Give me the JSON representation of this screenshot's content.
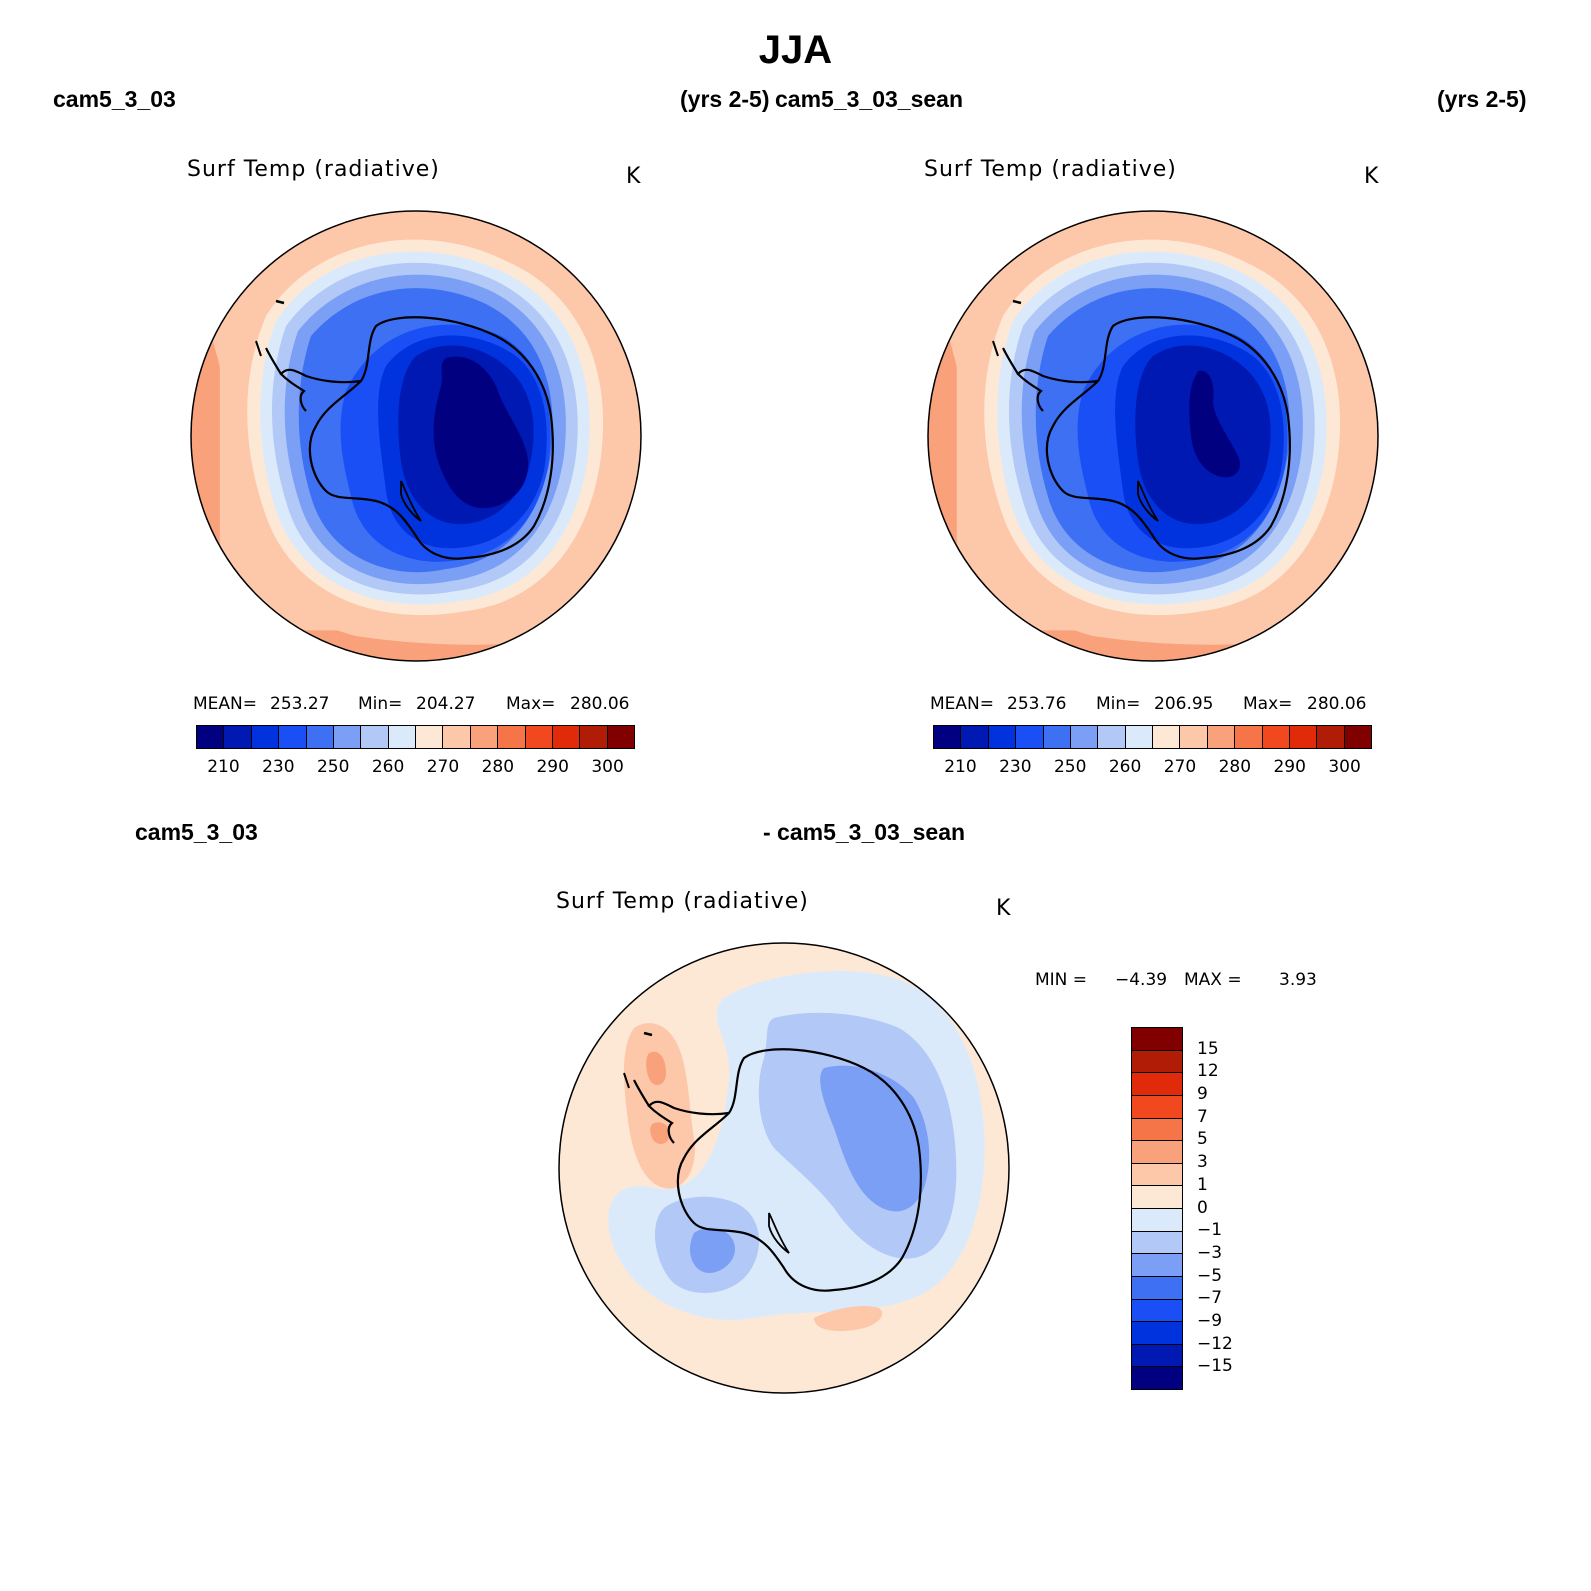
{
  "title": "JJA",
  "top_left": {
    "case_name": "cam5_3_03",
    "years": "(yrs 2-5)",
    "plot_title": "Surf Temp (radiative)",
    "unit": "K",
    "mean_label": "MEAN=",
    "mean": "253.27",
    "min_label": "Min=",
    "min": "204.27",
    "max_label": "Max=",
    "max": "280.06"
  },
  "top_right": {
    "case_name": "cam5_3_03_sean",
    "years": "(yrs 2-5)",
    "plot_title": "Surf Temp (radiative)",
    "unit": "K",
    "mean_label": "MEAN=",
    "mean": "253.76",
    "min_label": "Min=",
    "min": "206.95",
    "max_label": "Max=",
    "max": "280.06"
  },
  "bottom": {
    "case_name": "cam5_3_03",
    "diff_label": "- cam5_3_03_sean",
    "plot_title": "Surf Temp (radiative)",
    "unit": "K",
    "min_label": "MIN =",
    "min": "−4.39",
    "max_label": "MAX =",
    "max": "3.93"
  },
  "abs_colorbar": {
    "colors": [
      "#000080",
      "#0019b3",
      "#0033dd",
      "#1a4ff5",
      "#3d70f2",
      "#7a9ff5",
      "#b2c9f8",
      "#dbeafb",
      "#fde8d6",
      "#fdc8aa",
      "#f9a17b",
      "#f57548",
      "#f2481f",
      "#e02a09",
      "#b01c06",
      "#800000"
    ],
    "tick_labels": [
      "210",
      "230",
      "250",
      "260",
      "270",
      "280",
      "290",
      "300"
    ]
  },
  "diff_colorbar": {
    "colors": [
      "#800000",
      "#b01c06",
      "#e02a09",
      "#f2481f",
      "#f57548",
      "#f9a17b",
      "#fdc8aa",
      "#fde8d6",
      "#dbeafb",
      "#b2c9f8",
      "#7a9ff5",
      "#3d70f2",
      "#1a4ff5",
      "#0033dd",
      "#0019b3",
      "#000080"
    ],
    "tick_labels": [
      "15",
      "12",
      "9",
      "7",
      "5",
      "3",
      "1",
      "0",
      "−1",
      "−3",
      "−5",
      "−7",
      "−9",
      "−12",
      "−15"
    ]
  }
}
